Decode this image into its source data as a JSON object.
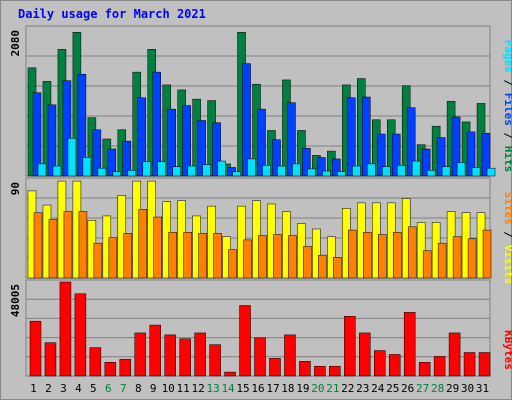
{
  "title": "Daily usage for March 2021",
  "colors": {
    "hits": "#008040",
    "files": "#0040ff",
    "pages": "#00e0ff",
    "visits": "#ffff00",
    "sites": "#ff8000",
    "kbytes": "#ff0000",
    "background": "#c0c0c0",
    "weekday_label": "#000000",
    "weekend_label": "#008040"
  },
  "chart_data": [
    {
      "type": "bar",
      "panel": "top",
      "max_label": "2080",
      "ylim": [
        0,
        2080
      ],
      "grid": true,
      "categories": [
        "1",
        "2",
        "3",
        "4",
        "5",
        "6",
        "7",
        "8",
        "9",
        "10",
        "11",
        "12",
        "13",
        "14",
        "15",
        "16",
        "17",
        "18",
        "19",
        "20",
        "21",
        "22",
        "23",
        "24",
        "25",
        "26",
        "27",
        "28",
        "29",
        "30",
        "31"
      ],
      "weekend_days": [
        "6",
        "7",
        "13",
        "14",
        "20",
        "21",
        "27",
        "28"
      ],
      "legend": [
        {
          "text": "Pages",
          "color": "#00e0ff"
        },
        {
          "text": " / ",
          "color": "#000000"
        },
        {
          "text": "Files",
          "color": "#0040ff"
        },
        {
          "text": " / ",
          "color": "#000000"
        },
        {
          "text": "Hits",
          "color": "#008040"
        }
      ],
      "series": [
        {
          "name": "Hits",
          "color": "#008040",
          "values": [
            1520,
            1330,
            1780,
            2020,
            820,
            520,
            650,
            1460,
            1780,
            1280,
            1210,
            1080,
            1060,
            170,
            2020,
            1290,
            640,
            1350,
            640,
            290,
            350,
            1280,
            1370,
            790,
            790,
            1270,
            440,
            700,
            1050,
            760,
            1020
          ]
        },
        {
          "name": "Files",
          "color": "#0040ff",
          "values": [
            1170,
            1000,
            1340,
            1430,
            650,
            380,
            490,
            1100,
            1460,
            940,
            990,
            780,
            750,
            120,
            1580,
            940,
            510,
            1030,
            390,
            260,
            240,
            1100,
            1110,
            590,
            590,
            960,
            380,
            540,
            830,
            620,
            600
          ]
        },
        {
          "name": "Pages",
          "color": "#00e0ff",
          "values": [
            170,
            140,
            530,
            260,
            110,
            60,
            80,
            200,
            200,
            130,
            140,
            160,
            210,
            60,
            240,
            150,
            140,
            170,
            100,
            70,
            60,
            140,
            170,
            130,
            150,
            210,
            80,
            130,
            190,
            120,
            110
          ]
        }
      ]
    },
    {
      "type": "bar",
      "panel": "middle",
      "max_label": "90",
      "ylim": [
        0,
        90
      ],
      "grid": true,
      "legend": [
        {
          "text": "Sites",
          "color": "#ff8000"
        },
        {
          "text": " / ",
          "color": "#000000"
        },
        {
          "text": "Visits",
          "color": "#ffff00"
        }
      ],
      "series": [
        {
          "name": "Visits",
          "color": "#ffff00",
          "values": [
            80,
            67,
            89,
            89,
            53,
            57,
            76,
            89,
            89,
            70,
            71,
            57,
            66,
            38,
            66,
            71,
            68,
            61,
            50,
            45,
            38,
            64,
            69,
            69,
            69,
            73,
            51,
            51,
            61,
            60,
            60
          ]
        },
        {
          "name": "Sites",
          "color": "#ff8000",
          "values": [
            60,
            54,
            61,
            61,
            32,
            37,
            41,
            63,
            56,
            42,
            42,
            41,
            41,
            26,
            35,
            39,
            40,
            39,
            29,
            21,
            19,
            44,
            42,
            40,
            42,
            47,
            25,
            32,
            38,
            36,
            44
          ]
        }
      ]
    },
    {
      "type": "bar",
      "panel": "bottom",
      "max_label": "48005",
      "ylim": [
        0,
        48005
      ],
      "grid": true,
      "legend": [
        {
          "text": "KBytes",
          "color": "#ff0000"
        }
      ],
      "series": [
        {
          "name": "KBytes",
          "color": "#ff0000",
          "values": [
            28000,
            17000,
            48000,
            42000,
            14500,
            7000,
            8500,
            22000,
            26000,
            21000,
            19000,
            22000,
            16000,
            2000,
            36000,
            19500,
            9000,
            21000,
            7500,
            5000,
            5000,
            30500,
            22000,
            13000,
            11000,
            32500,
            7000,
            10000,
            22000,
            12000,
            12000
          ]
        }
      ]
    }
  ]
}
